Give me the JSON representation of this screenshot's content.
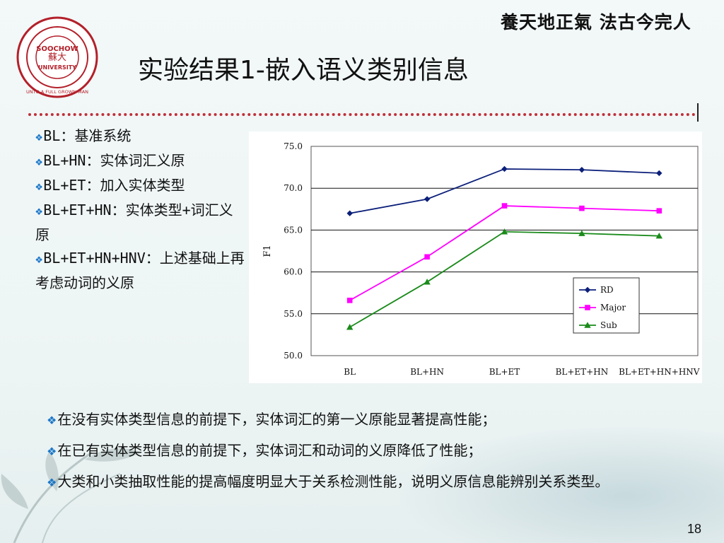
{
  "header": {
    "motto": "養天地正氣 法古今完人",
    "title": "实验结果1-嵌入语义类别信息",
    "logo_text": [
      "SOOCHOW",
      "UNIVERSITY",
      "UNTO A FULL GROWN MAN"
    ]
  },
  "bullets": [
    "BL：基准系统",
    "BL+HN：实体词汇义原",
    "BL+ET：加入实体类型",
    "BL+ET+HN：实体类型+词汇义原",
    "BL+ET+HN+HNV：上述基础上再考虑动词的义原"
  ],
  "notes": [
    "在没有实体类型信息的前提下，实体词汇的第一义原能显著提高性能；",
    "在已有实体类型信息的前提下，实体词汇和动词的义原降低了性能；",
    "大类和小类抽取性能的提高幅度明显大于关系检测性能，说明义原信息能辨别关系类型。"
  ],
  "page_number": "18",
  "colors": {
    "divider": "#c0303a",
    "bullet": "#1a77c8"
  },
  "chart_data": {
    "type": "line",
    "categories": [
      "BL",
      "BL+HN",
      "BL+ET",
      "BL+ET+HN",
      "BL+ET+HN+HNV"
    ],
    "ylabel": "F1",
    "xlabel": "",
    "ylim": [
      50,
      75
    ],
    "yticks": [
      "75.0",
      "70.0",
      "65.0",
      "60.0",
      "55.0",
      "50.0"
    ],
    "grid": true,
    "legend_position": "lower-right",
    "series": [
      {
        "name": "RD",
        "color": "#0b1f7a",
        "marker": "diamond",
        "values": [
          67.0,
          68.7,
          72.3,
          72.2,
          71.8
        ]
      },
      {
        "name": "Major",
        "color": "#ff00ff",
        "marker": "square",
        "values": [
          56.6,
          61.8,
          67.9,
          67.6,
          67.3
        ]
      },
      {
        "name": "Sub",
        "color": "#1a8a1a",
        "marker": "triangle",
        "values": [
          53.4,
          58.8,
          64.8,
          64.6,
          64.3
        ]
      }
    ]
  }
}
